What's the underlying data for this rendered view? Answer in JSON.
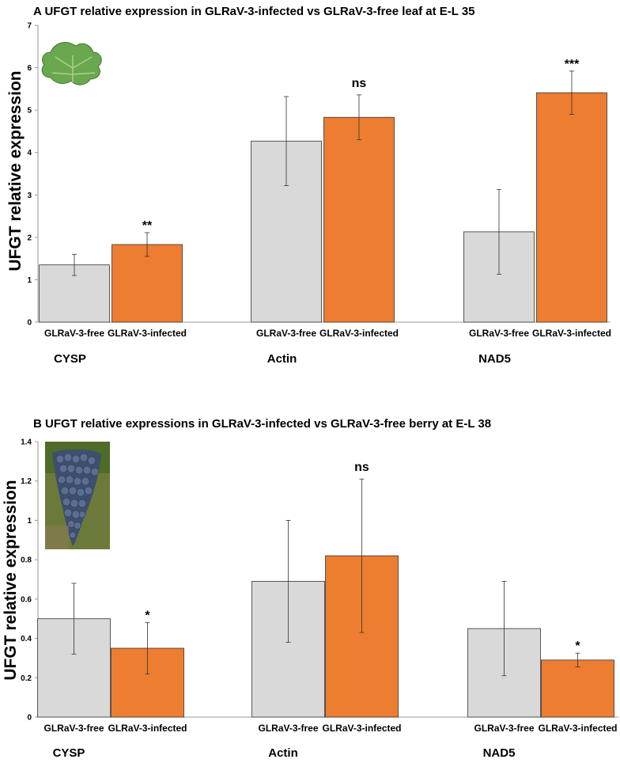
{
  "chart_data": [
    {
      "type": "bar",
      "title": "A  UFGT relative expression in GLRaV-3-infected vs GLRaV-3-free leaf at E-L 35",
      "ylabel": "UFGT relative expression",
      "ylim": [
        0,
        7
      ],
      "yticks": [
        "0",
        "1",
        "2",
        "3",
        "4",
        "5",
        "6",
        "7"
      ],
      "groups": [
        "CYSP",
        "Actin",
        "NAD5"
      ],
      "sublabels": [
        "GLRaV-3-free",
        "GLRaV-3-infected"
      ],
      "series": [
        {
          "name": "GLRaV-3-free",
          "color": "#d9d9d9",
          "values": [
            1.35,
            4.27,
            2.13
          ],
          "errors": [
            0.25,
            1.05,
            1.0
          ]
        },
        {
          "name": "GLRaV-3-infected",
          "color": "#ed7d31",
          "values": [
            1.83,
            4.83,
            5.41
          ],
          "errors": [
            0.28,
            0.53,
            0.51
          ]
        }
      ],
      "significance": [
        "**",
        "ns",
        "***"
      ],
      "image": "grape-leaf"
    },
    {
      "type": "bar",
      "title": "B  UFGT relative expressions in GLRaV-3-infected vs GLRaV-3-free berry at E-L 38",
      "ylabel": "UFGT relative expression",
      "ylim": [
        0,
        1.4
      ],
      "yticks": [
        "0",
        "0.2",
        "0.4",
        "0.6",
        "0.8",
        "1",
        "1.2",
        "1.4"
      ],
      "groups": [
        "CYSP",
        "Actin",
        "NAD5"
      ],
      "sublabels": [
        "GLRaV-3-free",
        "GLRaV-3-infected"
      ],
      "series": [
        {
          "name": "GLRaV-3-free",
          "color": "#d9d9d9",
          "values": [
            0.5,
            0.69,
            0.45
          ],
          "errors": [
            0.18,
            0.31,
            0.24
          ]
        },
        {
          "name": "GLRaV-3-infected",
          "color": "#ed7d31",
          "values": [
            0.35,
            0.82,
            0.29
          ],
          "errors": [
            0.13,
            0.39,
            0.035
          ]
        }
      ],
      "significance": [
        "*",
        "ns",
        "*"
      ],
      "image": "grape-bunch"
    }
  ]
}
